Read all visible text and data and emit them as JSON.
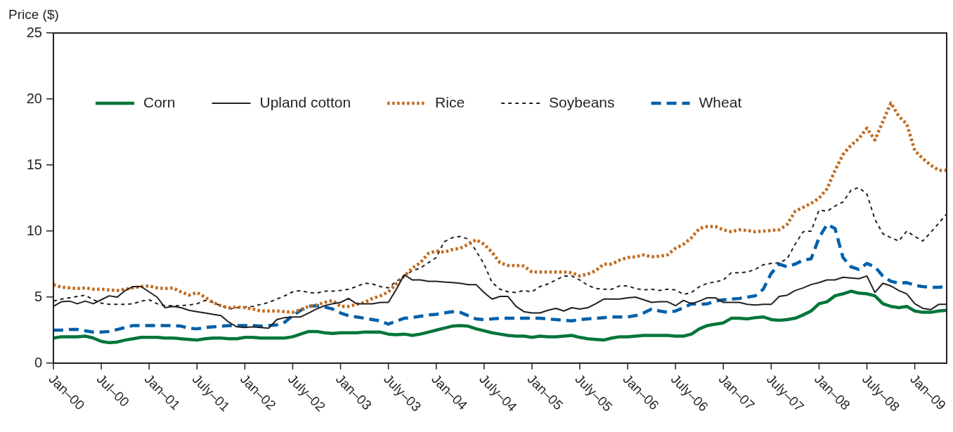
{
  "chart_data": {
    "type": "line",
    "ylabel": "Price ($)",
    "ylim": [
      0,
      25
    ],
    "yticks": [
      0,
      5,
      10,
      15,
      20,
      25
    ],
    "grid": false,
    "legend": "top left",
    "marker": "none",
    "categories": [
      "Jan–00",
      null,
      null,
      null,
      null,
      null,
      "Jul–00",
      null,
      null,
      null,
      null,
      null,
      "Jan–01",
      null,
      null,
      null,
      null,
      null,
      "July–01",
      null,
      null,
      null,
      null,
      null,
      "Jan–02",
      null,
      null,
      null,
      null,
      null,
      "July–02",
      null,
      null,
      null,
      null,
      null,
      "Jan–03",
      null,
      null,
      null,
      null,
      null,
      "July–03",
      null,
      null,
      null,
      null,
      null,
      "Jan–04",
      null,
      null,
      null,
      null,
      null,
      "July–04",
      null,
      null,
      null,
      null,
      null,
      "Jan–05",
      null,
      null,
      null,
      null,
      null,
      "July–05",
      null,
      null,
      null,
      null,
      null,
      "Jan–06",
      null,
      null,
      null,
      null,
      null,
      "July–06",
      null,
      null,
      null,
      null,
      null,
      "Jan–07",
      null,
      null,
      null,
      null,
      null,
      "July–07",
      null,
      null,
      null,
      null,
      null,
      "Jan–08",
      null,
      null,
      null,
      null,
      null,
      "July–08",
      null,
      null,
      null,
      null,
      null,
      "Jan–09",
      null,
      null,
      null,
      null
    ],
    "series": [
      {
        "name": "Corn",
        "color": "#00753a",
        "line_style": "solid",
        "values": [
          1.9,
          2.0,
          2.0,
          2.0,
          2.05,
          1.9,
          1.65,
          1.55,
          1.6,
          1.75,
          1.85,
          1.95,
          1.95,
          1.95,
          1.9,
          1.9,
          1.85,
          1.8,
          1.75,
          1.85,
          1.9,
          1.9,
          1.85,
          1.85,
          1.95,
          1.95,
          1.9,
          1.9,
          1.9,
          1.9,
          2.0,
          2.2,
          2.4,
          2.4,
          2.3,
          2.25,
          2.3,
          2.3,
          2.3,
          2.35,
          2.35,
          2.35,
          2.2,
          2.15,
          2.2,
          2.1,
          2.2,
          2.35,
          2.5,
          2.65,
          2.8,
          2.85,
          2.8,
          2.6,
          2.45,
          2.3,
          2.2,
          2.1,
          2.05,
          2.05,
          1.95,
          2.05,
          2.0,
          2.0,
          2.05,
          2.1,
          1.95,
          1.85,
          1.8,
          1.75,
          1.9,
          2.0,
          2.0,
          2.05,
          2.1,
          2.1,
          2.1,
          2.1,
          2.05,
          2.05,
          2.2,
          2.6,
          2.85,
          2.95,
          3.05,
          3.4,
          3.4,
          3.35,
          3.45,
          3.5,
          3.3,
          3.25,
          3.3,
          3.4,
          3.65,
          3.95,
          4.5,
          4.65,
          5.1,
          5.25,
          5.45,
          5.3,
          5.25,
          5.1,
          4.5,
          4.3,
          4.2,
          4.3,
          3.95,
          3.85,
          3.85,
          3.95,
          4.0
        ]
      },
      {
        "name": "Upland cotton",
        "color": "#231f20",
        "line_style": "solid",
        "values": [
          4.3,
          4.65,
          4.7,
          4.5,
          4.7,
          4.5,
          4.8,
          5.1,
          5.0,
          5.5,
          5.8,
          5.8,
          5.4,
          5.0,
          4.2,
          4.3,
          4.2,
          4.0,
          3.9,
          3.8,
          3.7,
          3.6,
          3.1,
          2.75,
          2.7,
          2.75,
          2.7,
          2.65,
          3.3,
          3.45,
          3.5,
          3.5,
          3.8,
          4.1,
          4.35,
          4.5,
          4.6,
          4.9,
          4.5,
          4.5,
          4.5,
          4.6,
          4.6,
          5.6,
          6.7,
          6.3,
          6.3,
          6.2,
          6.2,
          6.15,
          6.1,
          6.05,
          5.95,
          5.95,
          5.35,
          4.85,
          5.05,
          5.05,
          4.3,
          3.9,
          3.8,
          3.8,
          4.0,
          4.15,
          3.95,
          4.2,
          4.1,
          4.2,
          4.5,
          4.85,
          4.85,
          4.85,
          4.95,
          5.0,
          4.8,
          4.6,
          4.65,
          4.65,
          4.35,
          4.75,
          4.5,
          4.7,
          4.95,
          4.95,
          4.6,
          4.6,
          4.6,
          4.45,
          4.4,
          4.45,
          4.45,
          5.05,
          5.15,
          5.5,
          5.7,
          5.95,
          6.1,
          6.3,
          6.3,
          6.5,
          6.45,
          6.4,
          6.6,
          5.35,
          6.05,
          5.85,
          5.5,
          5.25,
          4.5,
          4.15,
          4.05,
          4.45,
          4.45
        ]
      },
      {
        "name": "Rice",
        "color": "#c26a1d",
        "line_style": "dotted",
        "values": [
          5.95,
          5.75,
          5.7,
          5.65,
          5.7,
          5.6,
          5.6,
          5.55,
          5.5,
          5.6,
          5.7,
          5.8,
          5.85,
          5.7,
          5.65,
          5.7,
          5.4,
          5.15,
          5.35,
          5.0,
          4.6,
          4.35,
          4.2,
          4.25,
          4.2,
          4.1,
          3.95,
          3.95,
          3.95,
          3.9,
          3.85,
          4.05,
          4.3,
          4.4,
          4.6,
          4.75,
          4.3,
          4.3,
          4.45,
          4.6,
          4.9,
          5.1,
          5.4,
          6.0,
          6.6,
          7.2,
          7.6,
          8.3,
          8.5,
          8.4,
          8.6,
          8.7,
          9.0,
          9.35,
          9.0,
          8.4,
          7.6,
          7.4,
          7.4,
          7.35,
          6.9,
          6.9,
          6.9,
          6.9,
          6.9,
          6.85,
          6.6,
          6.75,
          7.0,
          7.5,
          7.5,
          7.8,
          8.0,
          8.05,
          8.2,
          8.05,
          8.1,
          8.2,
          8.7,
          9.0,
          9.5,
          10.2,
          10.35,
          10.35,
          10.1,
          9.95,
          10.1,
          10.05,
          9.95,
          10.0,
          10.05,
          10.1,
          10.5,
          11.5,
          11.8,
          12.1,
          12.5,
          13.2,
          14.6,
          15.8,
          16.5,
          17.0,
          17.8,
          16.9,
          18.3,
          19.7,
          18.7,
          18.1,
          16.1,
          15.5,
          15.0,
          14.6,
          14.6
        ]
      },
      {
        "name": "Soybeans",
        "color": "#231f20",
        "line_style": "dashed",
        "values": [
          4.7,
          4.85,
          4.95,
          5.05,
          5.15,
          4.8,
          4.55,
          4.45,
          4.45,
          4.45,
          4.5,
          4.7,
          4.8,
          4.5,
          4.35,
          4.35,
          4.35,
          4.4,
          4.5,
          4.75,
          4.6,
          4.35,
          4.1,
          4.2,
          4.25,
          4.3,
          4.45,
          4.6,
          4.85,
          5.1,
          5.4,
          5.5,
          5.35,
          5.3,
          5.45,
          5.45,
          5.5,
          5.6,
          5.8,
          6.05,
          6.0,
          5.8,
          5.7,
          6.2,
          6.6,
          7.0,
          7.2,
          7.6,
          8.0,
          9.2,
          9.5,
          9.6,
          9.4,
          8.5,
          7.5,
          6.1,
          5.6,
          5.4,
          5.35,
          5.5,
          5.4,
          5.8,
          6.0,
          6.3,
          6.6,
          6.6,
          6.3,
          5.9,
          5.65,
          5.6,
          5.6,
          5.85,
          5.85,
          5.65,
          5.55,
          5.6,
          5.5,
          5.6,
          5.55,
          5.2,
          5.35,
          5.8,
          6.05,
          6.15,
          6.3,
          6.85,
          6.85,
          6.9,
          7.1,
          7.45,
          7.55,
          7.6,
          7.9,
          9.0,
          9.95,
          10.0,
          11.6,
          11.5,
          11.9,
          12.2,
          13.1,
          13.3,
          12.8,
          10.9,
          9.8,
          9.5,
          9.25,
          10.0,
          9.6,
          9.25,
          9.9,
          10.6,
          11.3
        ]
      },
      {
        "name": "Wheat",
        "color": "#0060a9",
        "line_style": "dashed",
        "values": [
          2.5,
          2.5,
          2.55,
          2.55,
          2.45,
          2.35,
          2.35,
          2.4,
          2.55,
          2.7,
          2.85,
          2.85,
          2.85,
          2.85,
          2.85,
          2.85,
          2.8,
          2.65,
          2.6,
          2.7,
          2.75,
          2.8,
          2.85,
          2.85,
          2.85,
          2.85,
          2.8,
          2.85,
          2.9,
          3.1,
          3.6,
          4.0,
          4.3,
          4.35,
          4.25,
          4.1,
          3.8,
          3.6,
          3.5,
          3.4,
          3.3,
          3.2,
          2.95,
          3.2,
          3.4,
          3.45,
          3.55,
          3.65,
          3.7,
          3.8,
          3.9,
          3.85,
          3.6,
          3.35,
          3.3,
          3.35,
          3.4,
          3.4,
          3.4,
          3.4,
          3.4,
          3.4,
          3.35,
          3.3,
          3.25,
          3.2,
          3.3,
          3.35,
          3.4,
          3.45,
          3.5,
          3.5,
          3.5,
          3.6,
          3.8,
          4.1,
          3.95,
          3.85,
          3.95,
          4.2,
          4.5,
          4.45,
          4.5,
          4.7,
          4.8,
          4.85,
          4.9,
          5.0,
          5.1,
          5.6,
          6.8,
          7.5,
          7.3,
          7.5,
          7.8,
          7.9,
          9.5,
          10.5,
          10.2,
          8.0,
          7.3,
          7.1,
          7.55,
          7.3,
          6.6,
          6.2,
          6.05,
          6.1,
          5.9,
          5.8,
          5.75,
          5.75,
          5.8
        ]
      }
    ]
  }
}
